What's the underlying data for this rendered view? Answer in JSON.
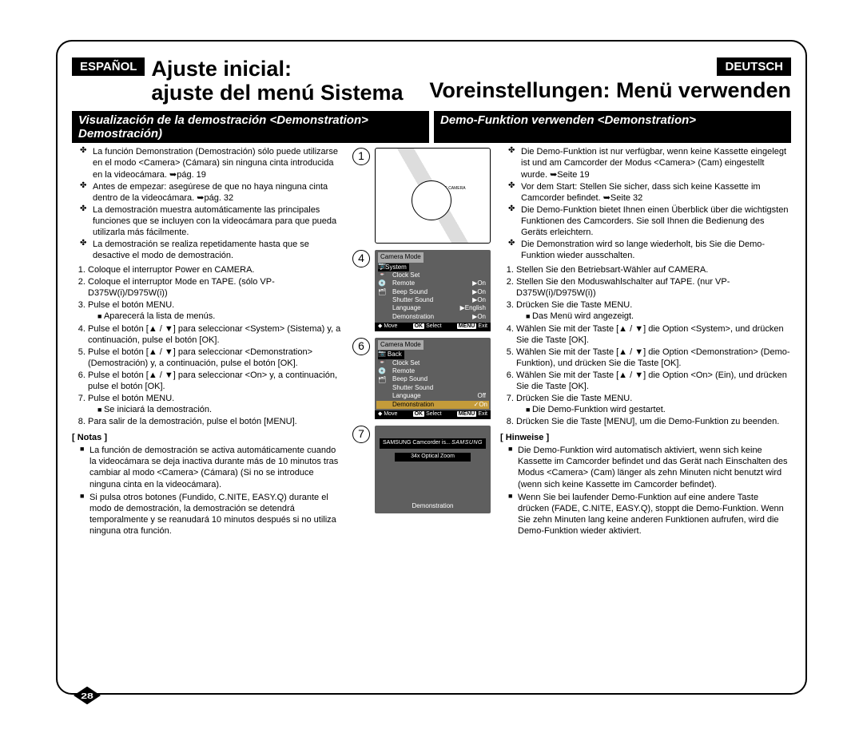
{
  "lang": {
    "es": "ESPAÑOL",
    "de": "DEUTSCH"
  },
  "titles": {
    "es_line1": "Ajuste inicial:",
    "es_line2": "ajuste del menú Sistema",
    "de": "Voreinstellungen: Menü verwenden"
  },
  "subtitles": {
    "es": "Visualización de la demostración <Demonstration> Demostración)",
    "de": "Demo-Funktion verwenden <Demonstration>"
  },
  "es": {
    "bullets": [
      "La función Demonstration (Demostración) sólo puede utilizarse en el modo <Camera> (Cámara) sin ninguna cinta introducida en la videocámara. ➥pág. 19",
      "Antes de empezar: asegúrese de que no haya ninguna cinta dentro de la videocámara. ➥pág. 32",
      "La demostración muestra automáticamente las principales funciones que se incluyen con la videocámara para que pueda utilizarla más fácilmente.",
      "La demostración se realiza repetidamente hasta que se desactive el modo de demostración."
    ],
    "steps": [
      "Coloque el interruptor Power en CAMERA.",
      "Coloque el interruptor Mode en TAPE. (sólo VP-D375W(i)/D975W(i))",
      "Pulse el botón MENU.",
      "Pulse el botón [▲ / ▼] para seleccionar <System> (Sistema) y, a continuación, pulse el botón [OK].",
      "Pulse el botón [▲ / ▼] para seleccionar <Demonstration> (Demostración) y, a continuación, pulse el botón [OK].",
      "Pulse el botón [▲ / ▼] para seleccionar <On> y, a continuación, pulse el botón [OK].",
      "Pulse el botón MENU.",
      "Para salir de la demostración, pulse el botón [MENU]."
    ],
    "substeps": {
      "3": "Aparecerá la lista de menús.",
      "7": "Se iniciará la demostración."
    },
    "notes_hdr": "[ Notas ]",
    "notes": [
      "La función de demostración se activa automáticamente cuando la videocámara se deja inactiva durante más de 10 minutos tras cambiar al modo <Camera> (Cámara) (Si no se introduce ninguna cinta en la videocámara).",
      "Si pulsa otros botones (Fundido, C.NITE, EASY.Q) durante el modo de demostración, la demostración se detendrá temporalmente y se reanudará 10 minutos después si no utiliza ninguna otra función."
    ]
  },
  "de": {
    "bullets": [
      "Die Demo-Funktion ist nur verfügbar, wenn keine Kassette eingelegt ist und am Camcorder der Modus <Camera> (Cam) eingestellt wurde. ➥Seite 19",
      "Vor dem Start: Stellen Sie sicher, dass sich keine Kassette im Camcorder befindet. ➥Seite 32",
      "Die Demo-Funktion bietet Ihnen einen Überblick über die wichtigsten Funktionen des Camcorders. Sie soll Ihnen die Bedienung des Geräts erleichtern.",
      "Die Demonstration wird so lange wiederholt, bis Sie die Demo-Funktion wieder ausschalten."
    ],
    "steps": [
      "Stellen Sie den Betriebsart-Wähler auf CAMERA.",
      "Stellen Sie den Moduswahlschalter auf TAPE. (nur VP-D375W(i)/D975W(i))",
      "Drücken Sie die Taste MENU.",
      "Wählen Sie mit der Taste [▲ / ▼] die Option <System>, und drücken Sie die Taste [OK].",
      "Wählen Sie mit der Taste [▲ / ▼] die Option <Demonstration> (Demo-Funktion), und drücken Sie die Taste [OK].",
      "Wählen Sie mit der Taste [▲ / ▼] die Option <On> (Ein), und drücken Sie die Taste [OK].",
      "Drücken Sie die Taste MENU.",
      "Drücken Sie die Taste [MENU], um die Demo-Funktion zu beenden."
    ],
    "substeps": {
      "3": "Das Menü wird angezeigt.",
      "7": "Die Demo-Funktion wird gestartet."
    },
    "notes_hdr": "[ Hinweise ]",
    "notes": [
      "Die Demo-Funktion wird automatisch aktiviert, wenn sich keine Kassette im Camcorder befindet und das Gerät nach Einschalten des Modus <Camera> (Cam) länger als zehn Minuten nicht benutzt wird (wenn sich keine Kassette im Camcorder befindet).",
      "Wenn Sie bei laufender Demo-Funktion auf eine andere Taste drücken (FADE, C.NITE, EASY.Q), stoppt die Demo-Funktion. Wenn Sie zehn Minuten lang keine anderen Funktionen aufrufen, wird die Demo-Funktion wieder aktiviert."
    ]
  },
  "figs": {
    "step_circles": [
      "1",
      "4",
      "6",
      "7"
    ],
    "illus_dial": "PLAYER\n· OFF\nCAMERA",
    "menu4": {
      "title": "Camera Mode",
      "section": "▶System",
      "rows": [
        {
          "k": "Clock Set",
          "v": ""
        },
        {
          "k": "Remote",
          "v": "▶On"
        },
        {
          "k": "Beep Sound",
          "v": "▶On"
        },
        {
          "k": "Shutter Sound",
          "v": "▶On"
        },
        {
          "k": "Language",
          "v": "▶English"
        },
        {
          "k": "Demonstration",
          "v": "▶On"
        }
      ],
      "footer": {
        "move": "Move",
        "select": "Select",
        "exit": "Exit",
        "ok": "OK",
        "menu": "MENU"
      }
    },
    "menu6": {
      "title": "Camera Mode",
      "section": "↳ Back",
      "rows": [
        {
          "k": "Clock Set",
          "v": ""
        },
        {
          "k": "Remote",
          "v": ""
        },
        {
          "k": "Beep Sound",
          "v": ""
        },
        {
          "k": "Shutter Sound",
          "v": ""
        },
        {
          "k": "Language",
          "v": "Off"
        },
        {
          "k": "Demonstration",
          "v": "✓On",
          "hl": true
        }
      ],
      "footer": {
        "move": "Move",
        "select": "Select",
        "exit": "Exit",
        "ok": "OK",
        "menu": "MENU"
      }
    },
    "demo": {
      "banner1_left": "SAMSUNG Camcorder is...",
      "banner1_brand": "SAMSUNG",
      "banner2": "34x Optical Zoom",
      "label": "Demonstration"
    }
  },
  "page_number": "28",
  "colors": {
    "black": "#000000",
    "white": "#ffffff",
    "menu_bg": "#5f5f5f",
    "highlight": "#c49b3a"
  }
}
